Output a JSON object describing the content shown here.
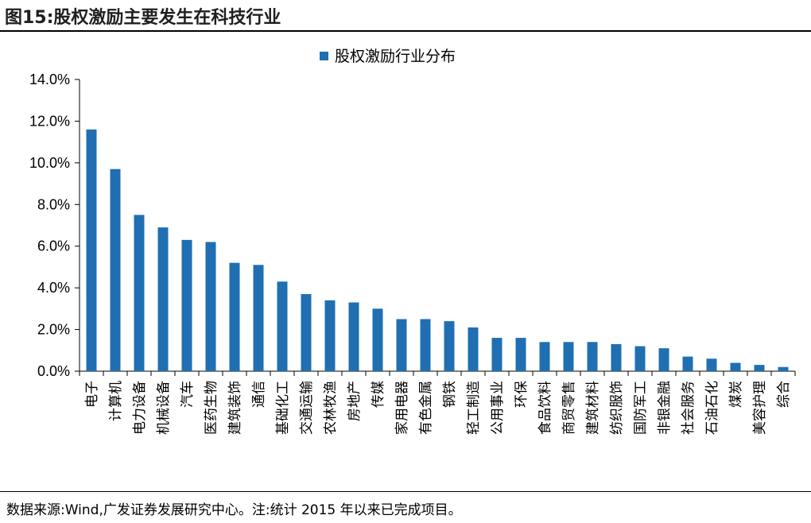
{
  "header": {
    "title": "图15:股权激励主要发生在科技行业"
  },
  "footer": {
    "source": "数据来源:Wind,广发证券发展研究中心。注:统计 2015 年以来已完成项目。"
  },
  "colors": {
    "bar": "#1f6fb2",
    "axis": "#000000"
  },
  "chart_data": {
    "type": "bar",
    "title": "",
    "xlabel": "",
    "ylabel": "",
    "legend": {
      "position": "top-center",
      "entries": [
        "股权激励行业分布"
      ]
    },
    "grid": false,
    "ylim": [
      0,
      14
    ],
    "yticks": [
      "0.0%",
      "2.0%",
      "4.0%",
      "6.0%",
      "8.0%",
      "10.0%",
      "12.0%",
      "14.0%"
    ],
    "categories": [
      "电子",
      "计算机",
      "电力设备",
      "机械设备",
      "汽车",
      "医药生物",
      "建筑装饰",
      "通信",
      "基础化工",
      "交通运输",
      "农林牧渔",
      "房地产",
      "传媒",
      "家用电器",
      "有色金属",
      "钢铁",
      "轻工制造",
      "公用事业",
      "环保",
      "食品饮料",
      "商贸零售",
      "建筑材料",
      "纺织服饰",
      "国防军工",
      "非银金融",
      "社会服务",
      "石油石化",
      "煤炭",
      "美容护理",
      "综合"
    ],
    "series": [
      {
        "name": "股权激励行业分布",
        "values": [
          11.6,
          9.7,
          7.5,
          6.9,
          6.3,
          6.2,
          5.2,
          5.1,
          4.3,
          3.7,
          3.4,
          3.3,
          3.0,
          2.5,
          2.5,
          2.4,
          2.1,
          1.6,
          1.6,
          1.4,
          1.4,
          1.4,
          1.3,
          1.2,
          1.1,
          0.7,
          0.6,
          0.4,
          0.3,
          0.2
        ]
      }
    ]
  }
}
